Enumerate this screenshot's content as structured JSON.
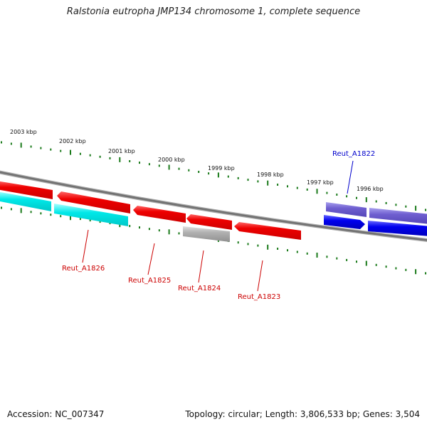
{
  "title": "Ralstonia eutropha JMP134 chromosome 1, complete sequence",
  "footer": {
    "accession": "Accession: NC_007347",
    "stats": "Topology: circular; Length: 3,806,533 bp; Genes: 3,504"
  },
  "scale_labels": [
    "2003 kbp",
    "2002 kbp",
    "2001 kbp",
    "2000 kbp",
    "1999 kbp",
    "1998 kbp",
    "1997 kbp",
    "1996 kbp"
  ],
  "gene_labels": [
    {
      "text": "Reut_A1822",
      "color": "#0000cc"
    },
    {
      "text": "Reut_A1826",
      "color": "#cc0000"
    },
    {
      "text": "Reut_A1825",
      "color": "#cc0000"
    },
    {
      "text": "Reut_A1824",
      "color": "#cc0000"
    },
    {
      "text": "Reut_A1823",
      "color": "#cc0000"
    }
  ],
  "colors": {
    "backbone": "#777777",
    "tick": "#1a7a1a",
    "gene_red": "#ee0000",
    "gene_cyan": "#00e0e0",
    "gene_blue": "#0000ee",
    "gene_purple": "#6f5fd0",
    "gene_gray": "#aaaaaa"
  }
}
